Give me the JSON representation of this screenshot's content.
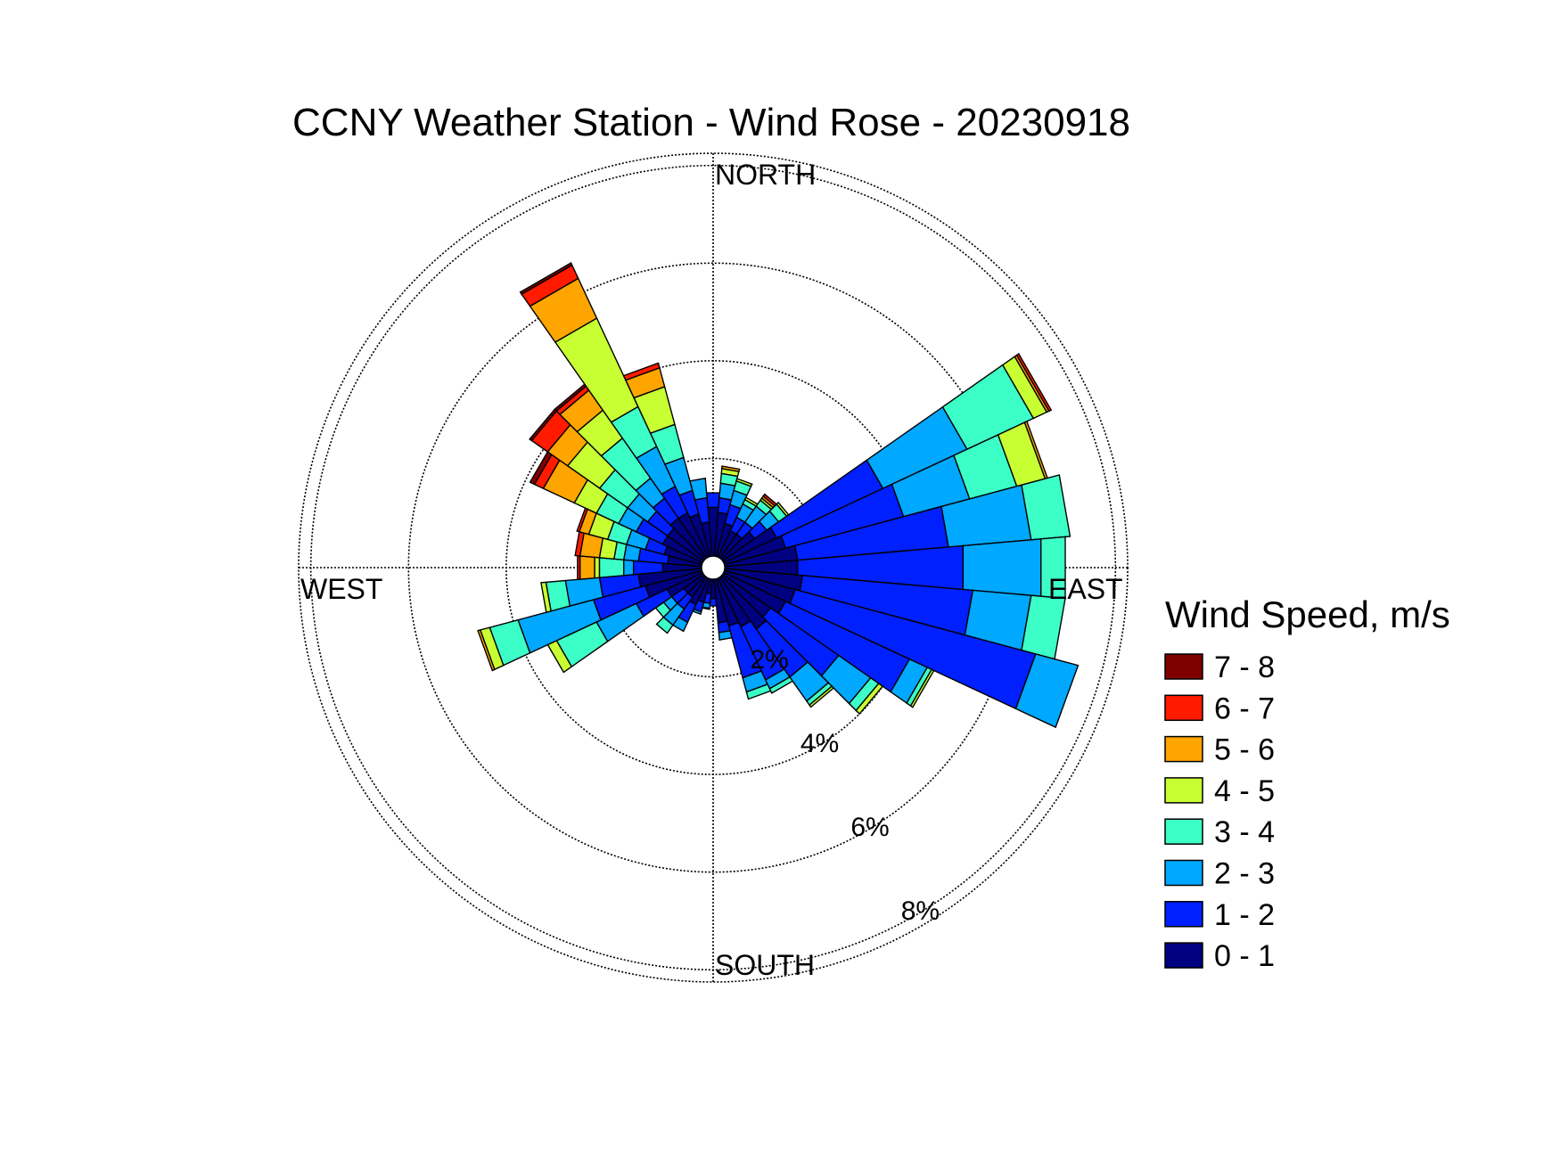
{
  "chart_data": {
    "type": "wind-rose",
    "title": "CCNY Weather Station - Wind Rose - 20230918",
    "compass_labels": {
      "north": "NORTH",
      "east": "EAST",
      "south": "SOUTH",
      "west": "WEST"
    },
    "frequency_unit": "%",
    "rings": [
      {
        "value": 2,
        "label": "2%"
      },
      {
        "value": 4,
        "label": "4%"
      },
      {
        "value": 6,
        "label": "6%"
      },
      {
        "value": 8,
        "label": "8%"
      }
    ],
    "max_frequency": 8.25,
    "sector_width_deg": 10,
    "direction_convention": "compass degrees, clockwise from north (the direction the petal points)",
    "legend": {
      "title": "Wind Speed, m/s",
      "placement": "right",
      "bins": [
        {
          "label": "7 - 8",
          "color": "#800000"
        },
        {
          "label": "6 - 7",
          "color": "#ff1a00"
        },
        {
          "label": "5 - 6",
          "color": "#ffa500"
        },
        {
          "label": "4 - 5",
          "color": "#c8ff32"
        },
        {
          "label": "3 - 4",
          "color": "#3cffc8"
        },
        {
          "label": "2 - 3",
          "color": "#00a8ff"
        },
        {
          "label": "1 - 2",
          "color": "#0020ff"
        },
        {
          "label": "0 - 1",
          "color": "#000080"
        }
      ]
    },
    "series_order": [
      "0 - 1",
      "1 - 2",
      "2 - 3",
      "3 - 4",
      "4 - 5",
      "5 - 6",
      "6 - 7",
      "7 - 8"
    ],
    "cumulative_note": "each sector lists cumulative frequency (%) at the outer edge of each speed bin, innermost first",
    "sectors": [
      {
        "dir": 0,
        "cum": [
          1.0,
          1.3
        ]
      },
      {
        "dir": 10,
        "cum": [
          0.9,
          1.2,
          1.5,
          1.7,
          1.8,
          1.85
        ]
      },
      {
        "dir": 20,
        "cum": [
          0.7,
          1.1,
          1.4,
          1.6,
          1.65
        ]
      },
      {
        "dir": 30,
        "cum": [
          0.6,
          0.9,
          1.2,
          1.3,
          1.35
        ]
      },
      {
        "dir": 40,
        "cum": [
          0.6,
          0.9,
          1.3,
          1.45,
          1.5,
          1.55,
          1.6
        ]
      },
      {
        "dir": 50,
        "cum": [
          0.8,
          1.1,
          1.4,
          1.6,
          1.65
        ]
      },
      {
        "dir": 60,
        "cum": [
          1.2,
          3.6,
          5.5,
          7.0,
          7.3,
          7.35,
          7.4
        ]
      },
      {
        "dir": 70,
        "cum": [
          1.3,
          3.8,
          5.2,
          6.2,
          6.8,
          6.85
        ]
      },
      {
        "dir": 80,
        "cum": [
          1.5,
          4.6,
          6.3,
          7.1
        ]
      },
      {
        "dir": 90,
        "cum": [
          1.5,
          4.9,
          6.5,
          7.0
        ]
      },
      {
        "dir": 100,
        "cum": [
          1.6,
          5.1,
          6.3,
          7.0
        ]
      },
      {
        "dir": 110,
        "cum": [
          1.5,
          6.6,
          7.5
        ]
      },
      {
        "dir": 120,
        "cum": [
          1.4,
          4.2,
          4.6,
          4.7,
          4.75
        ]
      },
      {
        "dir": 130,
        "cum": [
          1.2,
          2.9,
          3.7,
          3.9,
          4.0
        ]
      },
      {
        "dir": 140,
        "cum": [
          1.3,
          2.5,
          3.1,
          3.2,
          3.25
        ]
      },
      {
        "dir": 150,
        "cum": [
          1.1,
          2.3,
          2.5,
          2.6
        ]
      },
      {
        "dir": 160,
        "cum": [
          1.0,
          2.1,
          2.4,
          2.55
        ]
      },
      {
        "dir": 170,
        "cum": [
          0.9,
          1.1,
          1.25
        ]
      },
      {
        "dir": 180,
        "cum": [
          0.4,
          0.55
        ]
      },
      {
        "dir": 190,
        "cum": [
          0.3,
          0.5,
          0.6,
          0.62
        ]
      },
      {
        "dir": 200,
        "cum": [
          0.5,
          0.7,
          0.75
        ]
      },
      {
        "dir": 210,
        "cum": [
          0.6,
          1.0,
          1.2
        ]
      },
      {
        "dir": 220,
        "cum": [
          0.5,
          0.8,
          1.2,
          1.4
        ]
      },
      {
        "dir": 230,
        "cum": [
          0.5,
          0.8,
          1.0,
          1.2
        ]
      },
      {
        "dir": 240,
        "cum": [
          0.8,
          1.5,
          2.4,
          3.3,
          3.5
        ]
      },
      {
        "dir": 250,
        "cum": [
          1.2,
          2.3,
          3.9,
          4.5,
          4.7,
          4.75
        ]
      },
      {
        "dir": 260,
        "cum": [
          1.3,
          2.1,
          2.8,
          3.2,
          3.3
        ]
      },
      {
        "dir": 270,
        "cum": [
          0.8,
          1.4,
          1.6,
          2.1,
          2.2,
          2.5,
          2.55
        ]
      },
      {
        "dir": 280,
        "cum": [
          0.7,
          1.3,
          1.6,
          1.8,
          2.1,
          2.5,
          2.6
        ]
      },
      {
        "dir": 290,
        "cum": [
          0.8,
          1.2,
          1.6,
          2.0,
          2.4,
          2.6,
          2.65
        ]
      },
      {
        "dir": 300,
        "cum": [
          0.9,
          1.5,
          1.9,
          2.4,
          2.9,
          3.6,
          3.8,
          3.9
        ]
      },
      {
        "dir": 310,
        "cum": [
          0.9,
          1.4,
          1.9,
          2.6,
          3.4,
          3.9,
          4.3,
          4.35
        ]
      },
      {
        "dir": 320,
        "cum": [
          1.0,
          1.5,
          2.0,
          3.0,
          3.7,
          4.2,
          4.3,
          4.35
        ]
      },
      {
        "dir": 330,
        "cum": [
          1.0,
          1.6,
          2.5,
          3.4,
          5.4,
          6.3,
          6.6,
          6.65
        ]
      },
      {
        "dir": 340,
        "cum": [
          0.9,
          1.4,
          2.1,
          2.8,
          3.6,
          4.0,
          4.1
        ]
      },
      {
        "dir": 350,
        "cum": [
          0.7,
          1.2,
          1.6
        ]
      }
    ]
  }
}
